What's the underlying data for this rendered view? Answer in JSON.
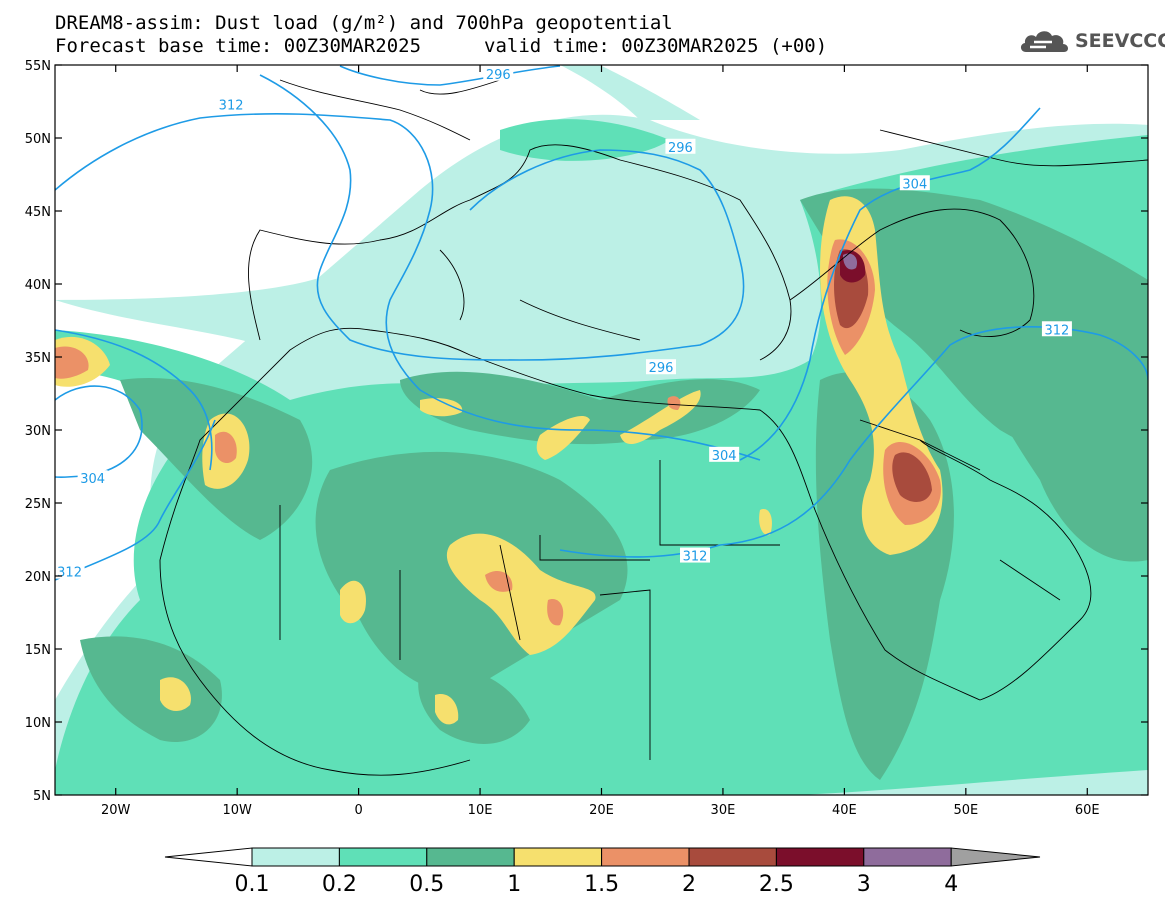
{
  "header": {
    "title_line1": "DREAM8-assim: Dust load (g/m²) and 700hPa geopotential",
    "base_time": "Forecast base time: 00Z30MAR2025",
    "valid_time": "valid time: 00Z30MAR2025 (+00)"
  },
  "logo": {
    "text": "SEEVCCC",
    "icon": "cloud-icon",
    "color": "#555555"
  },
  "map": {
    "lon_range": [
      -25,
      65
    ],
    "lat_range": [
      5,
      55
    ],
    "lat_ticks": [
      {
        "lat": 55,
        "label": "55N"
      },
      {
        "lat": 50,
        "label": "50N"
      },
      {
        "lat": 45,
        "label": "45N"
      },
      {
        "lat": 40,
        "label": "40N"
      },
      {
        "lat": 35,
        "label": "35N"
      },
      {
        "lat": 30,
        "label": "30N"
      },
      {
        "lat": 25,
        "label": "25N"
      },
      {
        "lat": 20,
        "label": "20N"
      },
      {
        "lat": 15,
        "label": "15N"
      },
      {
        "lat": 10,
        "label": "10N"
      },
      {
        "lat": 5,
        "label": "5N"
      }
    ],
    "lon_ticks": [
      {
        "lon": -20,
        "label": "20W"
      },
      {
        "lon": -10,
        "label": "10W"
      },
      {
        "lon": 0,
        "label": "0"
      },
      {
        "lon": 10,
        "label": "10E"
      },
      {
        "lon": 20,
        "label": "20E"
      },
      {
        "lon": 30,
        "label": "30E"
      },
      {
        "lon": 40,
        "label": "40E"
      },
      {
        "lon": 50,
        "label": "50E"
      },
      {
        "lon": 60,
        "label": "60E"
      }
    ],
    "contour_color": "#1e9be6",
    "contour_labels": [
      {
        "text": "312",
        "lon": -10.5,
        "lat": 52.3
      },
      {
        "text": "296",
        "lon": 11.5,
        "lat": 54.4
      },
      {
        "text": "296",
        "lon": 26.5,
        "lat": 49.4
      },
      {
        "text": "304",
        "lon": 45.8,
        "lat": 46.9
      },
      {
        "text": "312",
        "lon": 57.5,
        "lat": 36.9
      },
      {
        "text": "296",
        "lon": 24.9,
        "lat": 34.3
      },
      {
        "text": "304",
        "lon": 30.1,
        "lat": 28.3
      },
      {
        "text": "312",
        "lon": 27.7,
        "lat": 21.4
      },
      {
        "text": "304",
        "lon": -21.9,
        "lat": 26.7
      },
      {
        "text": "312",
        "lon": -23.8,
        "lat": 20.3
      }
    ]
  },
  "colorbar": {
    "levels": [
      "0.1",
      "0.2",
      "0.5",
      "1",
      "1.5",
      "2",
      "2.5",
      "3",
      "4"
    ],
    "colors": [
      "#ffffff",
      "#bcf0e6",
      "#5fe0b7",
      "#56b890",
      "#f6e06e",
      "#eb9167",
      "#a84b3d",
      "#7b0e2b",
      "#8f6c9c",
      "#a0a0a0"
    ]
  }
}
